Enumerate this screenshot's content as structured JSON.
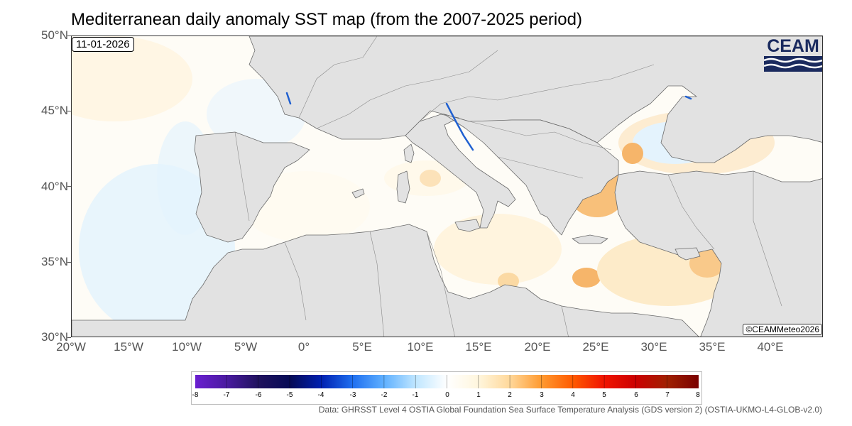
{
  "title": "Mediterranean daily anomaly SST map (from the 2007-2025 period)",
  "date": "11-01-2026",
  "credit": "©CEAMMeteo2026",
  "logo": {
    "text": "CEAM",
    "icon": "ceam-wave-logo-icon",
    "color": "#1a2a5e"
  },
  "axes": {
    "lat_labels": [
      "50°N",
      "45°N",
      "40°N",
      "35°N",
      "30°N"
    ],
    "lon_labels": [
      "20°W",
      "15°W",
      "10°W",
      "5°W",
      "0°",
      "5°E",
      "10°E",
      "15°E",
      "20°E",
      "25°E",
      "30°E",
      "35°E",
      "40°E"
    ]
  },
  "legend": {
    "labels": [
      "-8",
      "-7",
      "-6",
      "-5",
      "-4",
      "-3",
      "-2",
      "-1",
      "0",
      "1",
      "2",
      "3",
      "4",
      "5",
      "6",
      "7",
      "8"
    ],
    "colors": [
      "#6a1fd0",
      "#30176b",
      "#060a55",
      "#0026c8",
      "#1f6ff0",
      "#5fb0ff",
      "#bfe6ff",
      "#ffffff",
      "#fff6dd",
      "#ffd89a",
      "#ff9a30",
      "#ff5a00",
      "#f01400",
      "#cc0000",
      "#a02000",
      "#7a0000"
    ]
  },
  "colors": {
    "land": "#e2e2e2",
    "coast": "#6a6a6a",
    "sea_base": "#fefcf6",
    "cool_anomaly": "#e4f3fd",
    "warm_anomaly": "#fbdcac",
    "strong_cold": "#2060d0"
  },
  "source": "Data: GHRSST Level 4 OSTIA Global Foundation Sea Surface Temperature Analysis (GDS version 2) (OSTIA-UKMO-L4-GLOB-v2.0)"
}
